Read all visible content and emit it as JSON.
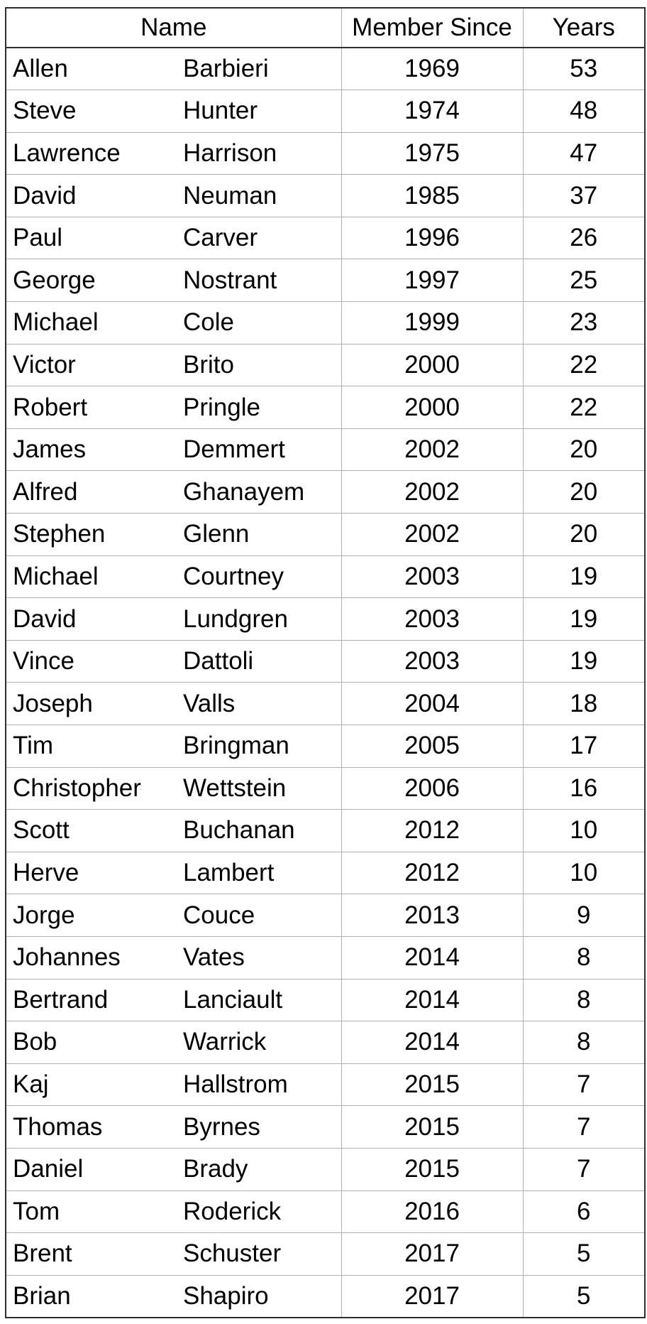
{
  "table": {
    "headers": {
      "name": "Name",
      "member_since": "Member Since",
      "years": "Years"
    },
    "rows": [
      {
        "first": "Allen",
        "last": "Barbieri",
        "since": "1969",
        "years": "53"
      },
      {
        "first": "Steve",
        "last": "Hunter",
        "since": "1974",
        "years": "48"
      },
      {
        "first": "Lawrence",
        "last": "Harrison",
        "since": "1975",
        "years": "47"
      },
      {
        "first": "David",
        "last": "Neuman",
        "since": "1985",
        "years": "37"
      },
      {
        "first": "Paul",
        "last": "Carver",
        "since": "1996",
        "years": "26"
      },
      {
        "first": "George",
        "last": "Nostrant",
        "since": "1997",
        "years": "25"
      },
      {
        "first": "Michael",
        "last": "Cole",
        "since": "1999",
        "years": "23"
      },
      {
        "first": "Victor",
        "last": "Brito",
        "since": "2000",
        "years": "22"
      },
      {
        "first": "Robert",
        "last": "Pringle",
        "since": "2000",
        "years": "22"
      },
      {
        "first": "James",
        "last": "Demmert",
        "since": "2002",
        "years": "20"
      },
      {
        "first": "Alfred",
        "last": "Ghanayem",
        "since": "2002",
        "years": "20"
      },
      {
        "first": "Stephen",
        "last": "Glenn",
        "since": "2002",
        "years": "20"
      },
      {
        "first": "Michael",
        "last": "Courtney",
        "since": "2003",
        "years": "19"
      },
      {
        "first": "David",
        "last": "Lundgren",
        "since": "2003",
        "years": "19"
      },
      {
        "first": "Vince",
        "last": "Dattoli",
        "since": "2003",
        "years": "19"
      },
      {
        "first": "Joseph",
        "last": "Valls",
        "since": "2004",
        "years": "18"
      },
      {
        "first": "Tim",
        "last": "Bringman",
        "since": "2005",
        "years": "17"
      },
      {
        "first": "Christopher",
        "last": "Wettstein",
        "since": "2006",
        "years": "16"
      },
      {
        "first": "Scott",
        "last": "Buchanan",
        "since": "2012",
        "years": "10"
      },
      {
        "first": "Herve",
        "last": "Lambert",
        "since": "2012",
        "years": "10"
      },
      {
        "first": "Jorge",
        "last": "Couce",
        "since": "2013",
        "years": "9"
      },
      {
        "first": "Johannes",
        "last": "Vates",
        "since": "2014",
        "years": "8"
      },
      {
        "first": "Bertrand",
        "last": "Lanciault",
        "since": "2014",
        "years": "8"
      },
      {
        "first": "Bob",
        "last": "Warrick",
        "since": "2014",
        "years": "8"
      },
      {
        "first": "Kaj",
        "last": "Hallstrom",
        "since": "2015",
        "years": "7"
      },
      {
        "first": "Thomas",
        "last": "Byrnes",
        "since": "2015",
        "years": "7"
      },
      {
        "first": "Daniel",
        "last": "Brady",
        "since": "2015",
        "years": "7"
      },
      {
        "first": "Tom",
        "last": "Roderick",
        "since": "2016",
        "years": "6"
      },
      {
        "first": "Brent",
        "last": "Schuster",
        "since": "2017",
        "years": "5"
      },
      {
        "first": "Brian",
        "last": "Shapiro",
        "since": "2017",
        "years": "5"
      }
    ],
    "colors": {
      "outer_border": "#2e2e2e",
      "grid_line": "#b0b0b0",
      "text": "#000000",
      "background": "#ffffff"
    }
  }
}
